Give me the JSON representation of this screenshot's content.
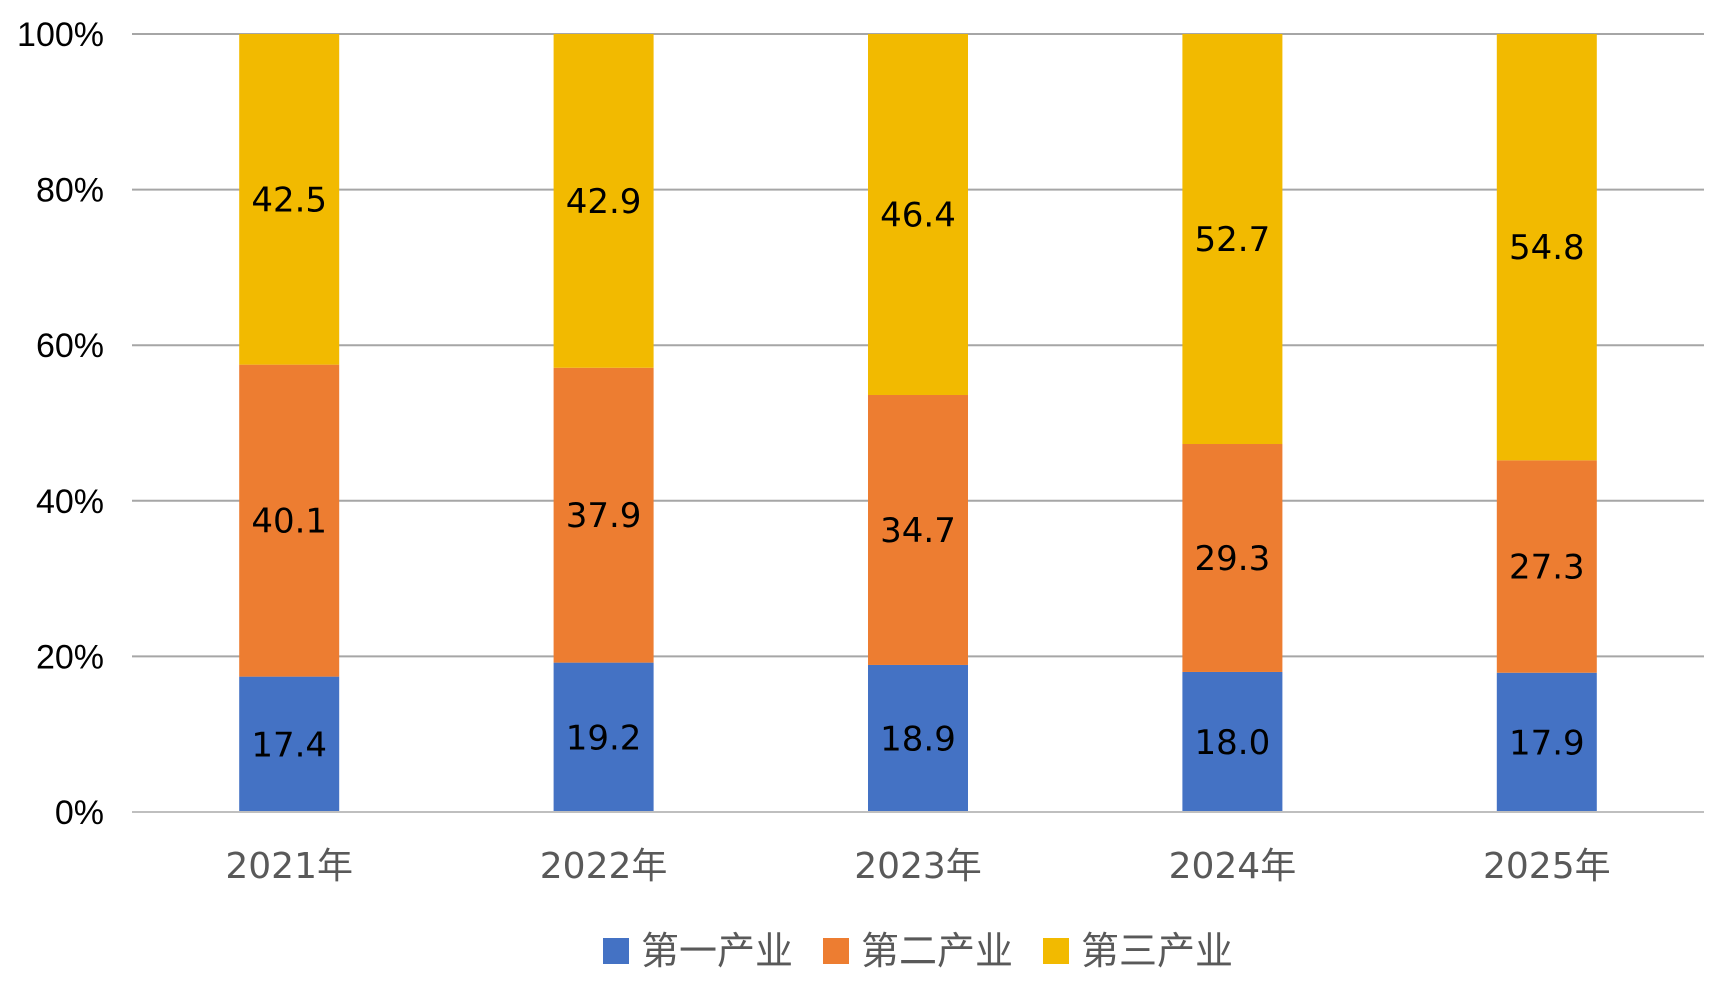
{
  "chart_data": {
    "type": "bar",
    "stacked": true,
    "percent_stacked": true,
    "categories": [
      "2021年",
      "2022年",
      "2023年",
      "2024年",
      "2025年"
    ],
    "series": [
      {
        "name": "第一产业",
        "values": [
          17.4,
          19.2,
          18.9,
          18.0,
          17.9
        ],
        "labels": [
          "17.4",
          "19.2",
          "18.9",
          "18.0",
          "17.9"
        ],
        "color": "#4472C4"
      },
      {
        "name": "第二产业",
        "values": [
          40.1,
          37.9,
          34.7,
          29.3,
          27.3
        ],
        "labels": [
          "40.1",
          "37.9",
          "34.7",
          "29.3",
          "27.3"
        ],
        "color": "#ED7D31"
      },
      {
        "name": "第三产业",
        "values": [
          42.5,
          42.9,
          46.4,
          52.7,
          54.8
        ],
        "labels": [
          "42.5",
          "42.9",
          "46.4",
          "52.7",
          "54.8"
        ],
        "color": "#F2BA00"
      }
    ],
    "ylim": [
      0,
      100
    ],
    "yticks": [
      "0%",
      "20%",
      "40%",
      "60%",
      "80%",
      "100%"
    ],
    "grid": true,
    "legend": "bottom"
  }
}
